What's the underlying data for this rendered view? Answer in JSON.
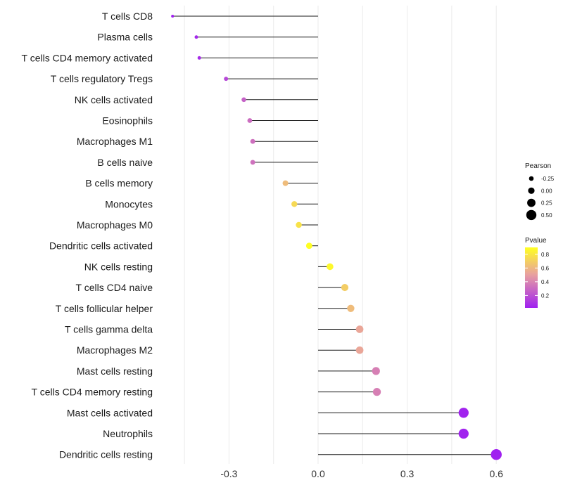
{
  "chart_data": {
    "type": "lollipop",
    "title": "",
    "xlabel": "",
    "ylabel": "",
    "xlim": [
      -0.45,
      0.6
    ],
    "xticks": [
      -0.3,
      0.0,
      0.3,
      0.6
    ],
    "xtick_labels": [
      "-0.3",
      "0.0",
      "0.3",
      "0.6"
    ],
    "grid": "vertical",
    "points": [
      {
        "category": "T cells CD8",
        "pearson": -0.49,
        "pvalue": 0.02
      },
      {
        "category": "Plasma cells",
        "pearson": -0.41,
        "pvalue": 0.05
      },
      {
        "category": "T cells CD4 memory activated",
        "pearson": -0.4,
        "pvalue": 0.06
      },
      {
        "category": "T cells regulatory  Tregs",
        "pearson": -0.31,
        "pvalue": 0.17
      },
      {
        "category": "NK cells activated",
        "pearson": -0.25,
        "pvalue": 0.27
      },
      {
        "category": "Eosinophils",
        "pearson": -0.23,
        "pvalue": 0.31
      },
      {
        "category": "Macrophages M1",
        "pearson": -0.22,
        "pvalue": 0.32
      },
      {
        "category": "B cells naive",
        "pearson": -0.22,
        "pvalue": 0.33
      },
      {
        "category": "B cells memory",
        "pearson": -0.11,
        "pvalue": 0.62
      },
      {
        "category": "Monocytes",
        "pearson": -0.08,
        "pvalue": 0.74
      },
      {
        "category": "Macrophages M0",
        "pearson": -0.065,
        "pvalue": 0.78
      },
      {
        "category": "Dendritic cells activated",
        "pearson": -0.03,
        "pvalue": 0.9
      },
      {
        "category": "NK cells resting",
        "pearson": 0.04,
        "pvalue": 0.87
      },
      {
        "category": "T cells CD4 naive",
        "pearson": 0.09,
        "pvalue": 0.69
      },
      {
        "category": "T cells follicular helper",
        "pearson": 0.11,
        "pvalue": 0.62
      },
      {
        "category": "T cells gamma delta",
        "pearson": 0.14,
        "pvalue": 0.53
      },
      {
        "category": "Macrophages M2",
        "pearson": 0.14,
        "pvalue": 0.53
      },
      {
        "category": "Mast cells resting",
        "pearson": 0.195,
        "pvalue": 0.38
      },
      {
        "category": "T cells CD4 memory resting",
        "pearson": 0.198,
        "pvalue": 0.38
      },
      {
        "category": "Mast cells activated",
        "pearson": 0.49,
        "pvalue": 0.03
      },
      {
        "category": "Neutrophils",
        "pearson": 0.49,
        "pvalue": 0.03
      },
      {
        "category": "Dendritic cells resting",
        "pearson": 0.6,
        "pvalue": 0.01
      }
    ],
    "legend_size": {
      "title": "Pearson",
      "values": [
        -0.25,
        0.0,
        0.25,
        0.5
      ],
      "labels": [
        "-0.25",
        "0.00",
        "0.25",
        "0.50"
      ]
    },
    "legend_color": {
      "title": "Pvalue",
      "range": [
        0.02,
        0.9
      ],
      "ticks": [
        0.8,
        0.6,
        0.4,
        0.2
      ],
      "tick_labels": [
        "0.8",
        "0.6",
        "0.4",
        "0.2"
      ],
      "low_color": "#a020f0",
      "mid_color": "#e8a0a0",
      "high_color": "#ffff22"
    },
    "colors": {
      "stem": "#1a1a1a",
      "grid": "#ebebeb",
      "legend_point": "#000000"
    }
  }
}
